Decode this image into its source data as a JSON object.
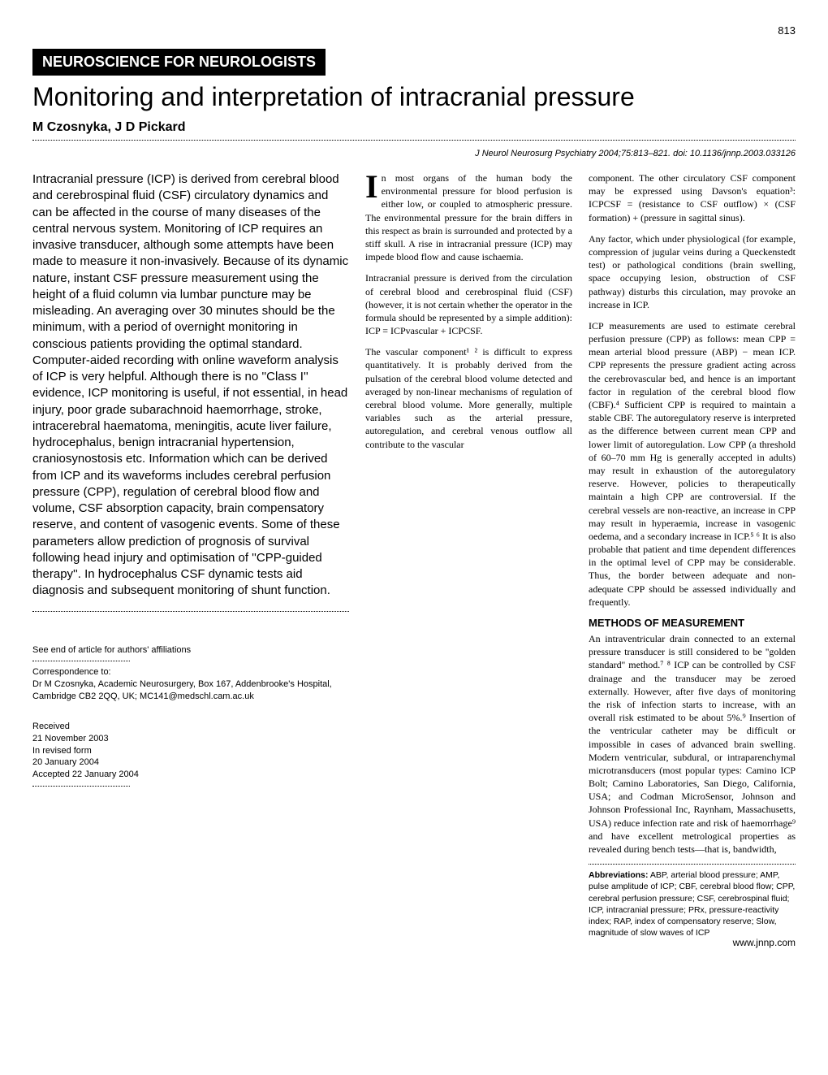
{
  "page_number": "813",
  "section_banner": "NEUROSCIENCE FOR NEUROLOGISTS",
  "title": "Monitoring and interpretation of intracranial pressure",
  "authors": "M Czosnyka, J D Pickard",
  "citation": "J Neurol Neurosurg Psychiatry 2004;75:813–821. doi: 10.1136/jnnp.2003.033126",
  "abstract": "Intracranial pressure (ICP) is derived from cerebral blood and cerebrospinal fluid (CSF) circulatory dynamics and can be affected in the course of many diseases of the central nervous system. Monitoring of ICP requires an invasive transducer, although some attempts have been made to measure it non-invasively. Because of its dynamic nature, instant CSF pressure measurement using the height of a fluid column via lumbar puncture may be misleading. An averaging over 30 minutes should be the minimum, with a period of overnight monitoring in conscious patients providing the optimal standard. Computer-aided recording with online waveform analysis of ICP is very helpful. Although there is no ''Class I'' evidence, ICP monitoring is useful, if not essential, in head injury, poor grade subarachnoid haemorrhage, stroke, intracerebral haematoma, meningitis, acute liver failure, hydrocephalus, benign intracranial hypertension, craniosynostosis etc. Information which can be derived from ICP and its waveforms includes cerebral perfusion pressure (CPP), regulation of cerebral blood flow and volume, CSF absorption capacity, brain compensatory reserve, and content of vasogenic events. Some of these parameters allow prediction of prognosis of survival following head injury and optimisation of ''CPP-guided therapy''. In hydrocephalus CSF dynamic tests aid diagnosis and subsequent monitoring of shunt function.",
  "sidebar": {
    "see_end": "See end of article for authors' affiliations",
    "correspondence_label": "Correspondence to:",
    "correspondence_body": "Dr M Czosnyka, Academic Neurosurgery, Box 167, Addenbrooke's Hospital, Cambridge CB2 2QQ, UK; MC141@medschl.cam.ac.uk",
    "received_label": "Received",
    "received_date": "21 November 2003",
    "revised_label": "In revised form",
    "revised_date": "20 January 2004",
    "accepted": "Accepted 22 January 2004"
  },
  "body": {
    "intro_dropcap": "I",
    "intro_p1": "n most organs of the human body the environmental pressure for blood perfusion is either low, or coupled to atmospheric pressure. The environmental pressure for the brain differs in this respect as brain is surrounded and protected by a stiff skull. A rise in intracranial pressure (ICP) may impede blood flow and cause ischaemia.",
    "intro_p2": "Intracranial pressure is derived from the circulation of cerebral blood and cerebrospinal fluid (CSF) (however, it is not certain whether the operator in the formula should be represented by a simple addition): ICP = ICPvascular + ICPCSF.",
    "intro_p3": "The vascular component¹ ² is difficult to express quantitatively. It is probably derived from the pulsation of the cerebral blood volume detected and averaged by non-linear mechanisms of regulation of cerebral blood volume. More generally, multiple variables such as the arterial pressure, autoregulation, and cerebral venous outflow all contribute to the vascular",
    "right_p1": "component. The other circulatory CSF component may be expressed using Davson's equation³: ICPCSF = (resistance to CSF outflow) × (CSF formation) + (pressure in sagittal sinus).",
    "right_p2": "Any factor, which under physiological (for example, compression of jugular veins during a Queckenstedt test) or pathological conditions (brain swelling, space occupying lesion, obstruction of CSF pathway) disturbs this circulation, may provoke an increase in ICP.",
    "right_p3": "ICP measurements are used to estimate cerebral perfusion pressure (CPP) as follows: mean CPP = mean arterial blood pressure (ABP) − mean ICP. CPP represents the pressure gradient acting across the cerebrovascular bed, and hence is an important factor in regulation of the cerebral blood flow (CBF).⁴ Sufficient CPP is required to maintain a stable CBF. The autoregulatory reserve is interpreted as the difference between current mean CPP and lower limit of autoregulation. Low CPP (a threshold of 60–70 mm Hg is generally accepted in adults) may result in exhaustion of the autoregulatory reserve. However, policies to therapeutically maintain a high CPP are controversial. If the cerebral vessels are non-reactive, an increase in CPP may result in hyperaemia, increase in vasogenic oedema, and a secondary increase in ICP.⁵ ⁶ It is also probable that patient and time dependent differences in the optimal level of CPP may be considerable. Thus, the border between adequate and non-adequate CPP should be assessed individually and frequently.",
    "methods_heading": "METHODS OF MEASUREMENT",
    "methods_p1": "An intraventricular drain connected to an external pressure transducer is still considered to be ''golden standard'' method.⁷ ⁸ ICP can be controlled by CSF drainage and the transducer may be zeroed externally. However, after five days of monitoring the risk of infection starts to increase, with an overall risk estimated to be about 5%.⁹ Insertion of the ventricular catheter may be difficult or impossible in cases of advanced brain swelling. Modern ventricular, subdural, or intraparenchymal microtransducers (most popular types: Camino ICP Bolt; Camino Laboratories, San Diego, California, USA; and Codman MicroSensor, Johnson and Johnson Professional Inc, Raynham, Massachusetts, USA) reduce infection rate and risk of haemorrhage⁹ and have excellent metrological properties as revealed during bench tests—that is, bandwidth,"
  },
  "abbreviations": {
    "label": "Abbreviations:",
    "text": "ABP, arterial blood pressure; AMP, pulse amplitude of ICP; CBF, cerebral blood flow; CPP, cerebral perfusion pressure; CSF, cerebrospinal fluid; ICP, intracranial pressure; PRx, pressure-reactivity index; RAP, index of compensatory reserve; Slow, magnitude of slow waves of ICP"
  },
  "footer_url": "www.jnnp.com"
}
